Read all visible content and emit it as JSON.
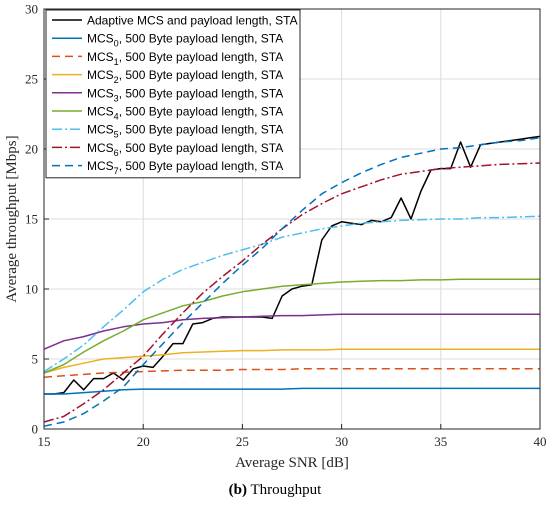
{
  "caption": {
    "label": "(b)",
    "text": " Throughput"
  },
  "chart_data": {
    "type": "line",
    "xlabel": "Average SNR [dB]",
    "ylabel": "Average throughput [Mbps]",
    "xlim": [
      15,
      40
    ],
    "ylim": [
      0,
      30
    ],
    "xticks": [
      15,
      20,
      25,
      30,
      35,
      40
    ],
    "yticks": [
      0,
      5,
      10,
      15,
      20,
      25,
      30
    ],
    "grid": true,
    "legend_position": "top-left",
    "series": [
      {
        "name": "Adaptive MCS and payload length, STA",
        "name_parts": [
          "Adaptive MCS and payload length, STA"
        ],
        "color": "#000000",
        "dash": "solid",
        "x": [
          15,
          15.5,
          16,
          16.5,
          17,
          17.5,
          18,
          18.5,
          19,
          19.5,
          20,
          20.5,
          21,
          21.5,
          22,
          22.5,
          23,
          23.5,
          24,
          24.5,
          25,
          25.5,
          26,
          26.5,
          27,
          27.5,
          28,
          28.5,
          29,
          29.5,
          30,
          30.5,
          31,
          31.5,
          32,
          32.5,
          33,
          33.5,
          34,
          34.5,
          35,
          35.5,
          36,
          36.5,
          37,
          37.5,
          38,
          38.5,
          39,
          39.5,
          40
        ],
        "y": [
          2.5,
          2.5,
          2.6,
          3.5,
          2.8,
          3.6,
          3.6,
          4.0,
          3.5,
          4.3,
          4.5,
          4.4,
          5.2,
          6.1,
          6.1,
          7.5,
          7.6,
          7.9,
          8.0,
          8.0,
          8.0,
          8.0,
          8.0,
          7.9,
          9.5,
          10.0,
          10.2,
          10.3,
          13.5,
          14.5,
          14.8,
          14.7,
          14.6,
          14.9,
          14.8,
          15.1,
          16.5,
          15.0,
          17.0,
          18.5,
          18.6,
          18.6,
          20.5,
          18.7,
          20.3,
          20.4,
          20.5,
          20.6,
          20.7,
          20.8,
          20.9
        ]
      },
      {
        "name": "MCS0, 500 Byte payload length, STA",
        "name_parts": [
          "MCS",
          "0",
          ", 500 Byte payload length, STA"
        ],
        "color": "#0072BD",
        "dash": "solid",
        "x": [
          15,
          16,
          17,
          18,
          19,
          20,
          21,
          22,
          23,
          24,
          25,
          26,
          27,
          28,
          29,
          30,
          31,
          32,
          33,
          34,
          35,
          36,
          37,
          38,
          39,
          40
        ],
        "y": [
          2.5,
          2.5,
          2.6,
          2.7,
          2.8,
          2.85,
          2.85,
          2.85,
          2.85,
          2.85,
          2.85,
          2.85,
          2.85,
          2.9,
          2.9,
          2.9,
          2.9,
          2.9,
          2.9,
          2.9,
          2.9,
          2.9,
          2.9,
          2.9,
          2.9,
          2.9
        ]
      },
      {
        "name": "MCS1, 500 Byte payload length, STA",
        "name_parts": [
          "MCS",
          "1",
          ", 500 Byte payload length, STA"
        ],
        "color": "#D95319",
        "dash": "8,5",
        "x": [
          15,
          16,
          17,
          18,
          19,
          20,
          21,
          22,
          23,
          24,
          25,
          26,
          27,
          28,
          29,
          30,
          31,
          32,
          33,
          34,
          35,
          36,
          37,
          38,
          39,
          40
        ],
        "y": [
          3.7,
          3.8,
          3.9,
          4.0,
          4.05,
          4.1,
          4.15,
          4.2,
          4.2,
          4.2,
          4.25,
          4.25,
          4.25,
          4.3,
          4.3,
          4.3,
          4.3,
          4.3,
          4.3,
          4.3,
          4.3,
          4.3,
          4.3,
          4.3,
          4.3,
          4.3
        ]
      },
      {
        "name": "MCS2, 500 Byte payload length, STA",
        "name_parts": [
          "MCS",
          "2",
          ", 500 Byte payload length, STA"
        ],
        "color": "#EDB120",
        "dash": "solid",
        "x": [
          15,
          16,
          17,
          18,
          19,
          20,
          21,
          22,
          23,
          24,
          25,
          26,
          27,
          28,
          29,
          30,
          31,
          32,
          33,
          34,
          35,
          36,
          37,
          38,
          39,
          40
        ],
        "y": [
          4.0,
          4.4,
          4.7,
          5.0,
          5.1,
          5.2,
          5.3,
          5.45,
          5.5,
          5.55,
          5.6,
          5.6,
          5.65,
          5.65,
          5.65,
          5.7,
          5.7,
          5.7,
          5.7,
          5.7,
          5.7,
          5.7,
          5.7,
          5.7,
          5.7,
          5.7
        ]
      },
      {
        "name": "MCS3, 500 Byte payload length, STA",
        "name_parts": [
          "MCS",
          "3",
          ", 500 Byte payload length, STA"
        ],
        "color": "#7E2F8E",
        "dash": "solid",
        "x": [
          15,
          16,
          17,
          18,
          19,
          20,
          21,
          22,
          23,
          24,
          25,
          26,
          27,
          28,
          29,
          30,
          31,
          32,
          33,
          34,
          35,
          36,
          37,
          38,
          39,
          40
        ],
        "y": [
          5.7,
          6.3,
          6.6,
          7.0,
          7.3,
          7.5,
          7.6,
          7.8,
          7.9,
          7.95,
          8.0,
          8.05,
          8.1,
          8.1,
          8.15,
          8.2,
          8.2,
          8.2,
          8.2,
          8.2,
          8.2,
          8.2,
          8.2,
          8.2,
          8.2,
          8.2
        ]
      },
      {
        "name": "MCS4, 500 Byte payload length, STA",
        "name_parts": [
          "MCS",
          "4",
          ", 500 Byte payload length, STA"
        ],
        "color": "#77AC30",
        "dash": "solid",
        "x": [
          15,
          16,
          17,
          18,
          19,
          20,
          21,
          22,
          23,
          24,
          25,
          26,
          27,
          28,
          29,
          30,
          31,
          32,
          33,
          34,
          35,
          36,
          37,
          38,
          39,
          40
        ],
        "y": [
          4.0,
          4.6,
          5.5,
          6.3,
          7.0,
          7.8,
          8.3,
          8.8,
          9.1,
          9.5,
          9.8,
          10.0,
          10.2,
          10.3,
          10.4,
          10.5,
          10.55,
          10.6,
          10.6,
          10.65,
          10.65,
          10.7,
          10.7,
          10.7,
          10.7,
          10.7
        ]
      },
      {
        "name": "MCS5, 500 Byte payload length, STA",
        "name_parts": [
          "MCS",
          "5",
          ", 500 Byte payload length, STA"
        ],
        "color": "#4DBEEE",
        "dash": "10,3,2,3",
        "x": [
          15,
          16,
          17,
          18,
          19,
          20,
          21,
          22,
          23,
          24,
          25,
          26,
          27,
          28,
          29,
          30,
          31,
          32,
          33,
          34,
          35,
          36,
          37,
          38,
          39,
          40
        ],
        "y": [
          4.1,
          5.0,
          6.0,
          7.3,
          8.5,
          9.8,
          10.7,
          11.4,
          11.9,
          12.4,
          12.8,
          13.2,
          13.7,
          14.0,
          14.3,
          14.5,
          14.7,
          14.8,
          14.9,
          14.95,
          15.0,
          15.0,
          15.1,
          15.1,
          15.15,
          15.2
        ]
      },
      {
        "name": "MCS6, 500 Byte payload length, STA",
        "name_parts": [
          "MCS",
          "6",
          ", 500 Byte payload length, STA"
        ],
        "color": "#A2142F",
        "dash": "10,3,2,3",
        "x": [
          15,
          16,
          17,
          18,
          19,
          20,
          21,
          22,
          23,
          24,
          25,
          26,
          27,
          28,
          29,
          30,
          31,
          32,
          33,
          34,
          35,
          36,
          37,
          38,
          39,
          40
        ],
        "y": [
          0.5,
          0.9,
          1.8,
          2.8,
          4.0,
          5.2,
          6.8,
          8.3,
          9.7,
          10.9,
          12.0,
          13.2,
          14.3,
          15.3,
          16.1,
          16.8,
          17.3,
          17.8,
          18.2,
          18.4,
          18.6,
          18.7,
          18.8,
          18.9,
          18.95,
          19.0
        ]
      },
      {
        "name": "MCS7, 500 Byte payload length, STA",
        "name_parts": [
          "MCS",
          "7",
          ", 500 Byte payload length, STA"
        ],
        "color": "#0072BD",
        "dash": "8,5",
        "x": [
          15,
          16,
          17,
          18,
          19,
          20,
          21,
          22,
          23,
          24,
          25,
          26,
          27,
          28,
          29,
          30,
          31,
          32,
          33,
          34,
          35,
          36,
          37,
          38,
          39,
          40
        ],
        "y": [
          0.2,
          0.5,
          1.1,
          2.0,
          3.0,
          4.6,
          6.1,
          7.6,
          9.0,
          10.4,
          11.7,
          12.9,
          14.3,
          15.6,
          16.8,
          17.6,
          18.3,
          18.9,
          19.4,
          19.7,
          20.0,
          20.1,
          20.3,
          20.5,
          20.6,
          20.8
        ]
      }
    ]
  }
}
